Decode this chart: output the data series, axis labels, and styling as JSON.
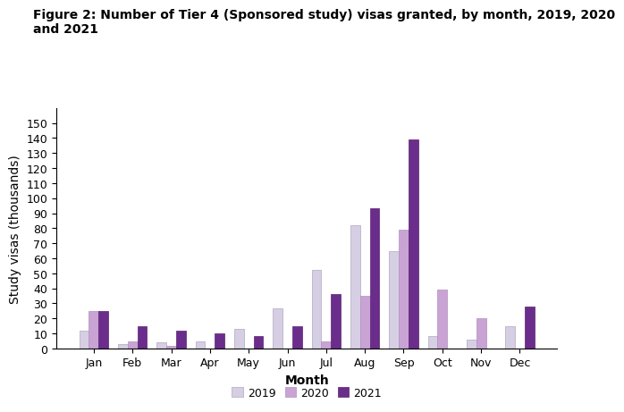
{
  "title_line1": "Figure 2: Number of Tier 4 (Sponsored study) visas granted, by month, 2019, 2020",
  "title_line2": "and 2021",
  "months": [
    "Jan",
    "Feb",
    "Mar",
    "Apr",
    "May",
    "Jun",
    "Jul",
    "Aug",
    "Sep",
    "Oct",
    "Nov",
    "Dec"
  ],
  "data_2019": [
    12,
    3,
    4,
    5,
    13,
    27,
    52,
    82,
    65,
    8,
    6,
    15
  ],
  "data_2020": [
    25,
    5,
    2,
    0,
    0,
    0,
    5,
    35,
    79,
    39,
    20,
    0
  ],
  "data_2021": [
    25,
    15,
    12,
    10,
    8,
    15,
    36,
    93,
    139,
    0,
    0,
    28
  ],
  "color_2019": "#d6cfe3",
  "color_2020": "#c9a3d4",
  "color_2021": "#6b2d8b",
  "color_2019_edge": "#b0a8c0",
  "color_2020_edge": "#b090c0",
  "color_2021_edge": "#5a2070",
  "xlabel": "Month",
  "ylabel": "Study visas (thousands)",
  "ylim": [
    0,
    160
  ],
  "yticks": [
    0,
    10,
    20,
    30,
    40,
    50,
    60,
    70,
    80,
    90,
    100,
    110,
    120,
    130,
    140,
    150
  ],
  "legend_labels": [
    "2019",
    "2020",
    "2021"
  ],
  "title_fontsize": 10,
  "axis_label_fontsize": 10,
  "tick_fontsize": 9,
  "legend_fontsize": 9,
  "bar_width": 0.25
}
